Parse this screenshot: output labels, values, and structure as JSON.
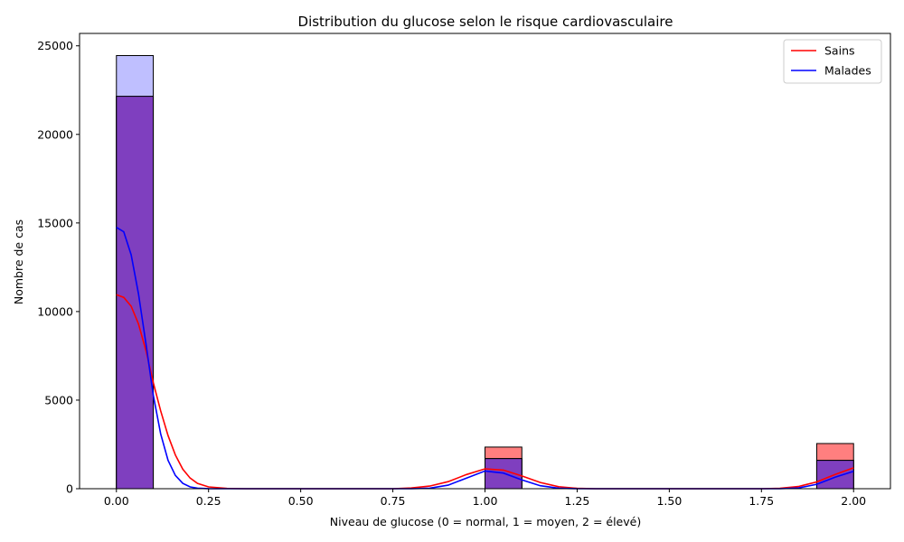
{
  "chart_data": {
    "type": "histogram",
    "title": "Distribution du glucose selon le risque cardiovasculaire",
    "xlabel": "Niveau de glucose (0 = normal, 1 = moyen, 2 = élevé)",
    "ylabel": "Nombre de cas",
    "xlim": [
      -0.1,
      2.1
    ],
    "ylim": [
      0,
      25700
    ],
    "x_ticks": [
      "0.00",
      "0.25",
      "0.50",
      "0.75",
      "1.00",
      "1.25",
      "1.50",
      "1.75",
      "2.00"
    ],
    "y_ticks": [
      "0",
      "5000",
      "10000",
      "15000",
      "20000",
      "25000"
    ],
    "grid": false,
    "legend_position": "top-right",
    "bins": [
      {
        "x0": 0.0,
        "x1": 0.1
      },
      {
        "x0": 1.0,
        "x1": 1.1
      },
      {
        "x0": 1.9,
        "x1": 2.0
      }
    ],
    "series": [
      {
        "name": "Sains",
        "color": "#ff0000",
        "bar_color": "#ff7f7f",
        "counts": [
          22150,
          2350,
          2550
        ],
        "kde": [
          [
            0.0,
            10950
          ],
          [
            0.02,
            10800
          ],
          [
            0.04,
            10300
          ],
          [
            0.06,
            9300
          ],
          [
            0.08,
            7800
          ],
          [
            0.1,
            6000
          ],
          [
            0.12,
            4400
          ],
          [
            0.14,
            3000
          ],
          [
            0.16,
            1900
          ],
          [
            0.18,
            1100
          ],
          [
            0.2,
            600
          ],
          [
            0.22,
            300
          ],
          [
            0.25,
            100
          ],
          [
            0.3,
            15
          ],
          [
            0.35,
            0
          ],
          [
            0.75,
            0
          ],
          [
            0.8,
            40
          ],
          [
            0.85,
            150
          ],
          [
            0.9,
            400
          ],
          [
            0.95,
            800
          ],
          [
            1.0,
            1120
          ],
          [
            1.05,
            1050
          ],
          [
            1.1,
            720
          ],
          [
            1.15,
            350
          ],
          [
            1.2,
            110
          ],
          [
            1.25,
            20
          ],
          [
            1.3,
            0
          ],
          [
            1.75,
            0
          ],
          [
            1.8,
            25
          ],
          [
            1.85,
            120
          ],
          [
            1.9,
            380
          ],
          [
            1.95,
            800
          ],
          [
            2.0,
            1180
          ]
        ]
      },
      {
        "name": "Malades",
        "color": "#0000ff",
        "bar_color": "#7f7fff",
        "counts": [
          24450,
          1700,
          1600
        ],
        "kde": [
          [
            0.0,
            14750
          ],
          [
            0.02,
            14500
          ],
          [
            0.04,
            13200
          ],
          [
            0.06,
            11000
          ],
          [
            0.08,
            8200
          ],
          [
            0.1,
            5300
          ],
          [
            0.12,
            3100
          ],
          [
            0.14,
            1600
          ],
          [
            0.16,
            750
          ],
          [
            0.18,
            300
          ],
          [
            0.2,
            100
          ],
          [
            0.22,
            30
          ],
          [
            0.25,
            5
          ],
          [
            0.3,
            0
          ],
          [
            0.8,
            0
          ],
          [
            0.85,
            30
          ],
          [
            0.9,
            200
          ],
          [
            0.95,
            600
          ],
          [
            1.0,
            1000
          ],
          [
            1.05,
            880
          ],
          [
            1.1,
            500
          ],
          [
            1.15,
            170
          ],
          [
            1.2,
            30
          ],
          [
            1.25,
            0
          ],
          [
            1.8,
            0
          ],
          [
            1.85,
            40
          ],
          [
            1.9,
            250
          ],
          [
            1.95,
            650
          ],
          [
            2.0,
            980
          ]
        ]
      }
    ]
  }
}
